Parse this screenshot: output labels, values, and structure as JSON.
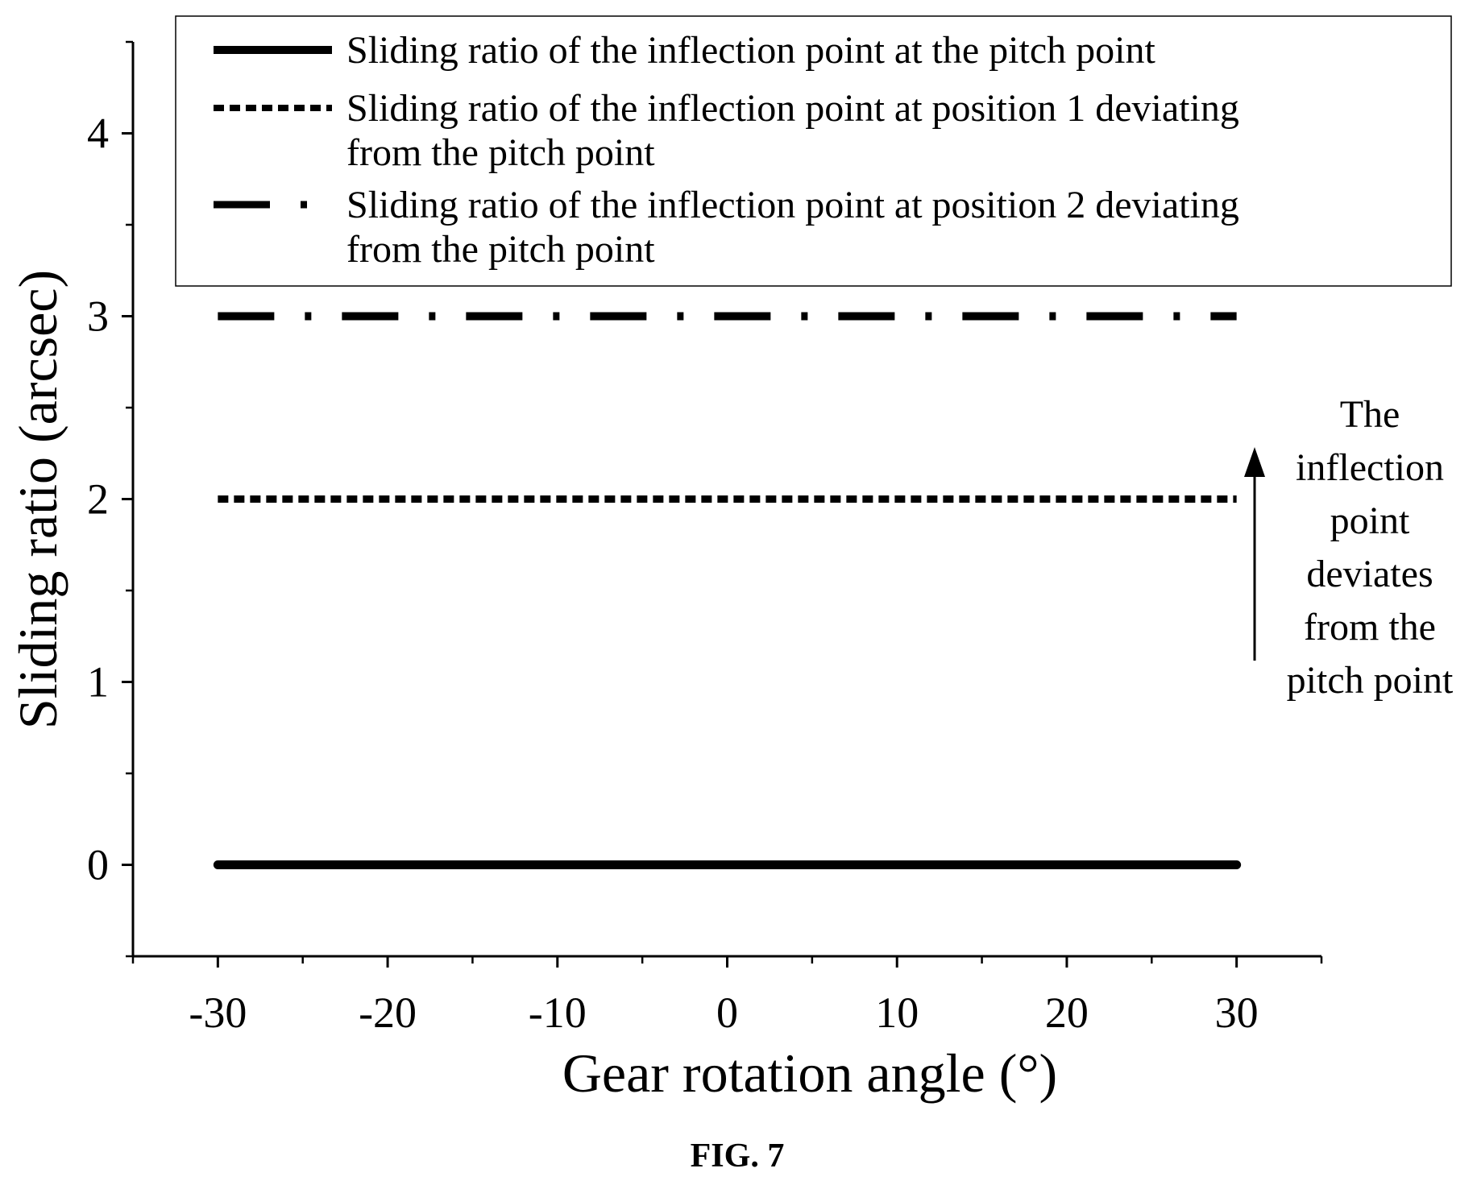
{
  "chart_data": {
    "type": "line",
    "title": "",
    "xlabel": "Gear rotation angle (°)",
    "ylabel": "Sliding ratio (arcsec)",
    "xlim": [
      -35,
      35
    ],
    "ylim": [
      -0.5,
      4.5
    ],
    "x_ticks": [
      "-30",
      "-20",
      "-10",
      "0",
      "10",
      "20",
      "30"
    ],
    "y_ticks": [
      "0",
      "1",
      "2",
      "3",
      "4"
    ],
    "grid": false,
    "legend_position": "top",
    "series": [
      {
        "name": "Sliding ratio of the inflection point at the pitch point",
        "line_style": "solid",
        "x": [
          -30,
          30
        ],
        "y": [
          0,
          0
        ]
      },
      {
        "name": "Sliding ratio of the inflection point at position 1 deviating from the pitch point",
        "line_style": "dashed",
        "x": [
          -30,
          30
        ],
        "y": [
          2,
          2
        ]
      },
      {
        "name": "Sliding ratio of the inflection point at position 2 deviating from the pitch point",
        "line_style": "dash-dot",
        "x": [
          -30,
          30
        ],
        "y": [
          3,
          3
        ]
      }
    ],
    "annotation": {
      "text_lines": [
        "The",
        "inflection",
        "point",
        "deviates",
        "from the",
        "pitch point"
      ],
      "arrow_direction": "up"
    }
  },
  "legend": {
    "items": [
      {
        "line_style": "solid",
        "lines": [
          "Sliding ratio of the inflection point at the pitch point"
        ]
      },
      {
        "line_style": "dashed",
        "lines": [
          "Sliding ratio of the inflection point at position 1 deviating",
          "from the pitch point"
        ]
      },
      {
        "line_style": "dash-dot",
        "lines": [
          "Sliding ratio of the inflection point at position 2 deviating",
          "from the pitch point"
        ]
      }
    ]
  },
  "caption": "FIG. 7",
  "colors": {
    "ink": "#000000",
    "background": "#ffffff"
  }
}
